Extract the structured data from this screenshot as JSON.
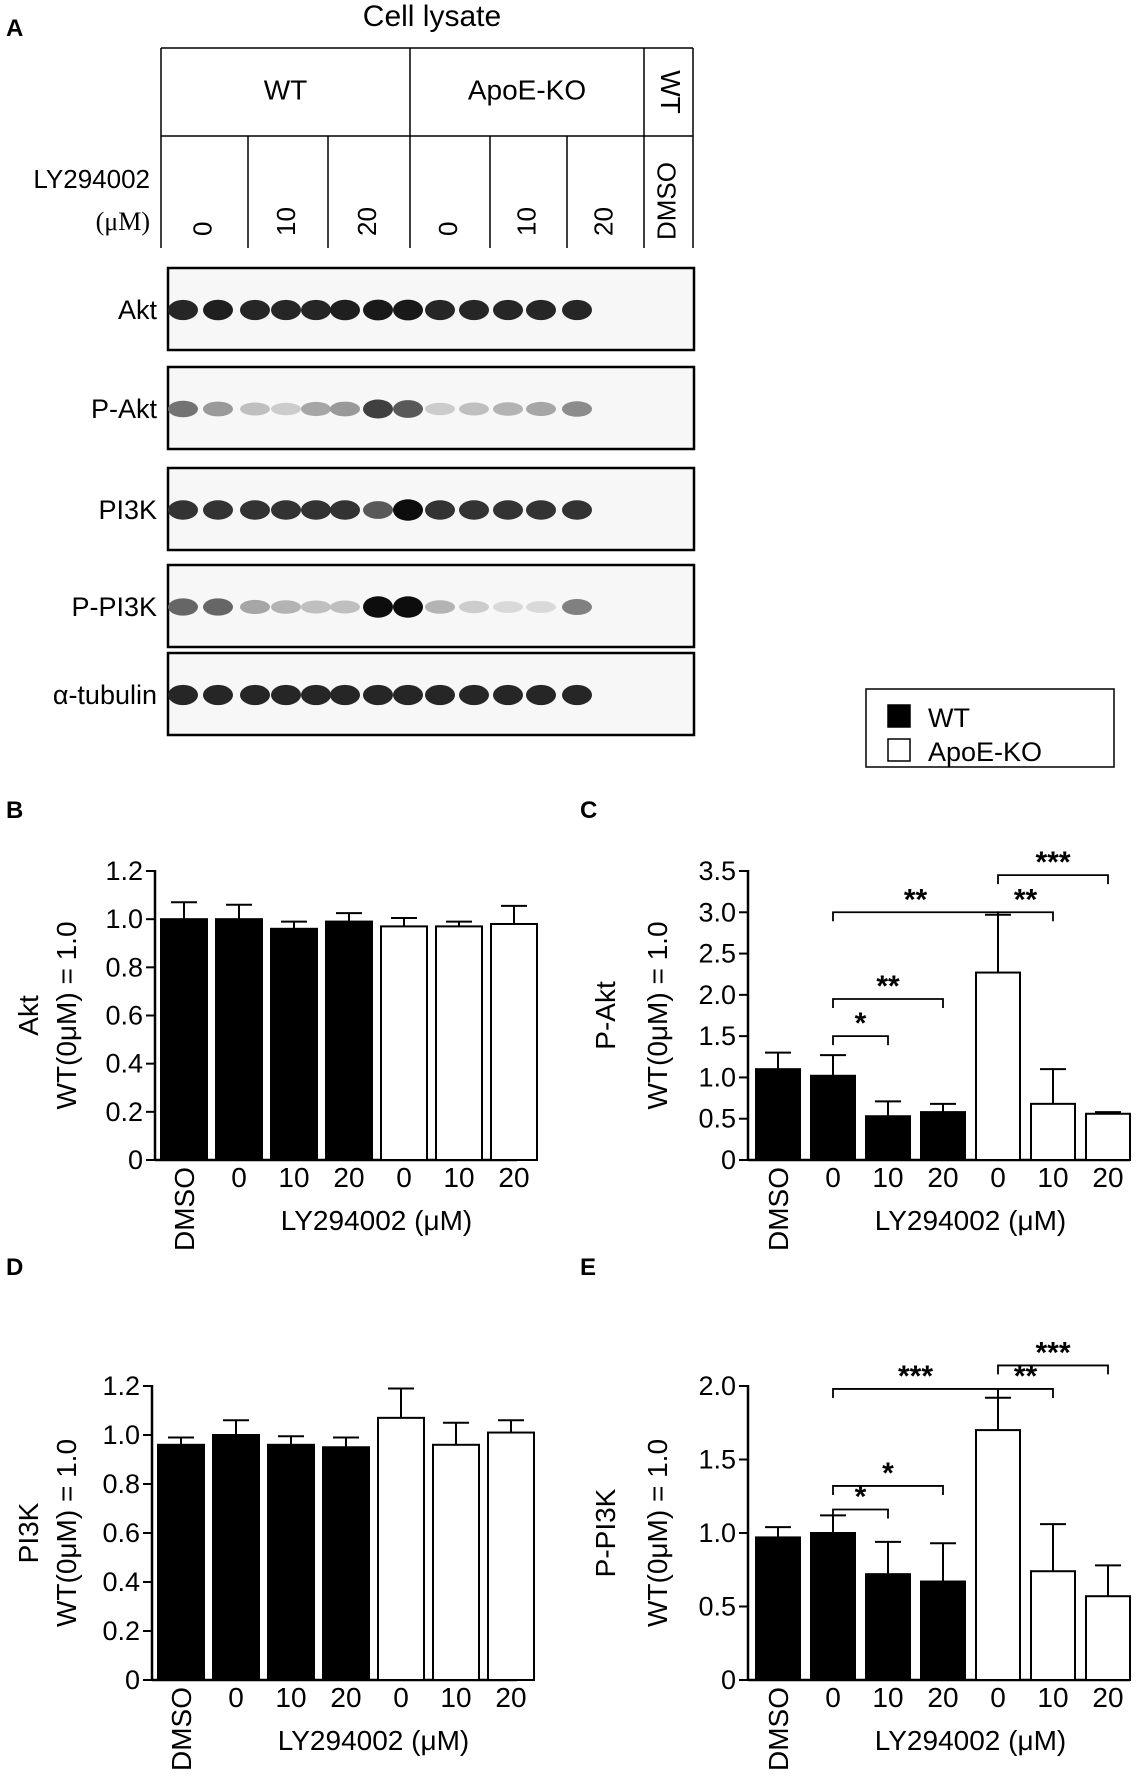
{
  "panel_a": {
    "letter": "A",
    "title": "Cell lysate",
    "groups": [
      {
        "label": "WT",
        "span": [
          0,
          3
        ]
      },
      {
        "label": "ApoE-KO",
        "span": [
          3,
          6
        ]
      },
      {
        "label": "WT",
        "span": [
          6,
          7
        ],
        "rotated": true
      }
    ],
    "treatment_label": [
      "LY294002",
      "(μM)"
    ],
    "lanes": [
      "0",
      "10",
      "20",
      "0",
      "10",
      "20",
      "DMSO"
    ],
    "blots": [
      {
        "label": "Akt",
        "intensity": [
          0.85,
          0.88,
          0.85,
          0.85,
          0.85,
          0.88,
          0.9,
          0.9,
          0.85,
          0.85,
          0.85,
          0.85,
          0.85
        ]
      },
      {
        "label": "P-Akt",
        "intensity": [
          0.55,
          0.4,
          0.25,
          0.2,
          0.35,
          0.4,
          0.75,
          0.65,
          0.2,
          0.25,
          0.3,
          0.35,
          0.45
        ]
      },
      {
        "label": "PI3K",
        "intensity": [
          0.8,
          0.8,
          0.8,
          0.8,
          0.8,
          0.8,
          0.65,
          0.95,
          0.8,
          0.8,
          0.8,
          0.8,
          0.8
        ]
      },
      {
        "label": "P-PI3K",
        "intensity": [
          0.6,
          0.6,
          0.35,
          0.3,
          0.25,
          0.25,
          0.95,
          0.95,
          0.3,
          0.2,
          0.15,
          0.15,
          0.5
        ]
      },
      {
        "label": "α-tubulin",
        "intensity": [
          0.85,
          0.85,
          0.85,
          0.85,
          0.85,
          0.85,
          0.85,
          0.85,
          0.85,
          0.85,
          0.85,
          0.85,
          0.85
        ]
      }
    ]
  },
  "legend": {
    "items": [
      {
        "label": "WT",
        "color": "#000000"
      },
      {
        "label": "ApoE-KO",
        "color": "#ffffff"
      }
    ]
  },
  "chart_data": [
    {
      "letter": "B",
      "type": "bar",
      "ylabel": [
        "Akt",
        "WT(0μM) = 1.0"
      ],
      "xlabel": "LY294002 (μM)",
      "categories": [
        "DMSO",
        "0",
        "10",
        "20",
        "0",
        "10",
        "20"
      ],
      "fill": [
        "#000000",
        "#000000",
        "#000000",
        "#000000",
        "#ffffff",
        "#ffffff",
        "#ffffff"
      ],
      "values": [
        1.0,
        1.0,
        0.96,
        0.99,
        0.97,
        0.97,
        0.98
      ],
      "errors": [
        0.07,
        0.06,
        0.03,
        0.035,
        0.035,
        0.02,
        0.075
      ],
      "ylim": [
        0,
        1.2
      ],
      "yticks": [
        0,
        0.2,
        0.4,
        0.6,
        0.8,
        1.0,
        1.2
      ],
      "yticklabels": [
        "0",
        "0.2",
        "0.4",
        "0.6",
        "0.8",
        "1.0",
        "1.2"
      ],
      "sig": []
    },
    {
      "letter": "C",
      "type": "bar",
      "ylabel": [
        "P-Akt",
        "WT(0μM) = 1.0"
      ],
      "xlabel": "LY294002 (μM)",
      "categories": [
        "DMSO",
        "0",
        "10",
        "20",
        "0",
        "10",
        "20"
      ],
      "fill": [
        "#000000",
        "#000000",
        "#000000",
        "#000000",
        "#ffffff",
        "#ffffff",
        "#ffffff"
      ],
      "values": [
        1.1,
        1.02,
        0.53,
        0.58,
        2.27,
        0.68,
        0.56
      ],
      "errors": [
        0.2,
        0.25,
        0.18,
        0.1,
        0.7,
        0.42,
        0.02
      ],
      "ylim": [
        0,
        3.5
      ],
      "yticks": [
        0,
        0.5,
        1.0,
        1.5,
        2.0,
        2.5,
        3.0,
        3.5
      ],
      "yticklabels": [
        "0",
        "0.5",
        "1.0",
        "1.5",
        "2.0",
        "2.5",
        "3.0",
        "3.5"
      ],
      "sig": [
        {
          "from": 1,
          "to": 2,
          "y": 1.5,
          "label": "*"
        },
        {
          "from": 1,
          "to": 3,
          "y": 1.95,
          "label": "**"
        },
        {
          "from": 1,
          "to": 4,
          "y": 3.0,
          "label": "**"
        },
        {
          "from": 4,
          "to": 5,
          "y": 3.0,
          "label": "**"
        },
        {
          "from": 4,
          "to": 6,
          "y": 3.45,
          "label": "***"
        }
      ]
    },
    {
      "letter": "D",
      "type": "bar",
      "ylabel": [
        "PI3K",
        "WT(0μM) = 1.0"
      ],
      "xlabel": "LY294002 (μM)",
      "categories": [
        "DMSO",
        "0",
        "10",
        "20",
        "0",
        "10",
        "20"
      ],
      "fill": [
        "#000000",
        "#000000",
        "#000000",
        "#000000",
        "#ffffff",
        "#ffffff",
        "#ffffff"
      ],
      "values": [
        0.96,
        1.0,
        0.96,
        0.95,
        1.07,
        0.96,
        1.01
      ],
      "errors": [
        0.03,
        0.06,
        0.035,
        0.04,
        0.12,
        0.09,
        0.05
      ],
      "ylim": [
        0,
        1.2
      ],
      "yticks": [
        0,
        0.2,
        0.4,
        0.6,
        0.8,
        1.0,
        1.2
      ],
      "yticklabels": [
        "0",
        "0.2",
        "0.4",
        "0.6",
        "0.8",
        "1.0",
        "1.2"
      ],
      "sig": []
    },
    {
      "letter": "E",
      "type": "bar",
      "ylabel": [
        "P-PI3K",
        "WT(0μM) = 1.0"
      ],
      "xlabel": "LY294002 (μM)",
      "categories": [
        "DMSO",
        "0",
        "10",
        "20",
        "0",
        "10",
        "20"
      ],
      "fill": [
        "#000000",
        "#000000",
        "#000000",
        "#000000",
        "#ffffff",
        "#ffffff",
        "#ffffff"
      ],
      "values": [
        0.97,
        1.0,
        0.72,
        0.67,
        1.7,
        0.74,
        0.57
      ],
      "errors": [
        0.07,
        0.12,
        0.22,
        0.26,
        0.22,
        0.32,
        0.21
      ],
      "ylim": [
        0,
        2.0
      ],
      "yticks": [
        0,
        0.5,
        1.0,
        1.5,
        2.0
      ],
      "yticklabels": [
        "0",
        "0.5",
        "1.0",
        "1.5",
        "2.0"
      ],
      "sig": [
        {
          "from": 1,
          "to": 2,
          "y": 1.16,
          "label": "*"
        },
        {
          "from": 1,
          "to": 3,
          "y": 1.32,
          "label": "*"
        },
        {
          "from": 1,
          "to": 4,
          "y": 1.98,
          "label": "***"
        },
        {
          "from": 4,
          "to": 5,
          "y": 1.98,
          "label": "**"
        },
        {
          "from": 4,
          "to": 6,
          "y": 2.14,
          "label": "***"
        }
      ]
    }
  ]
}
